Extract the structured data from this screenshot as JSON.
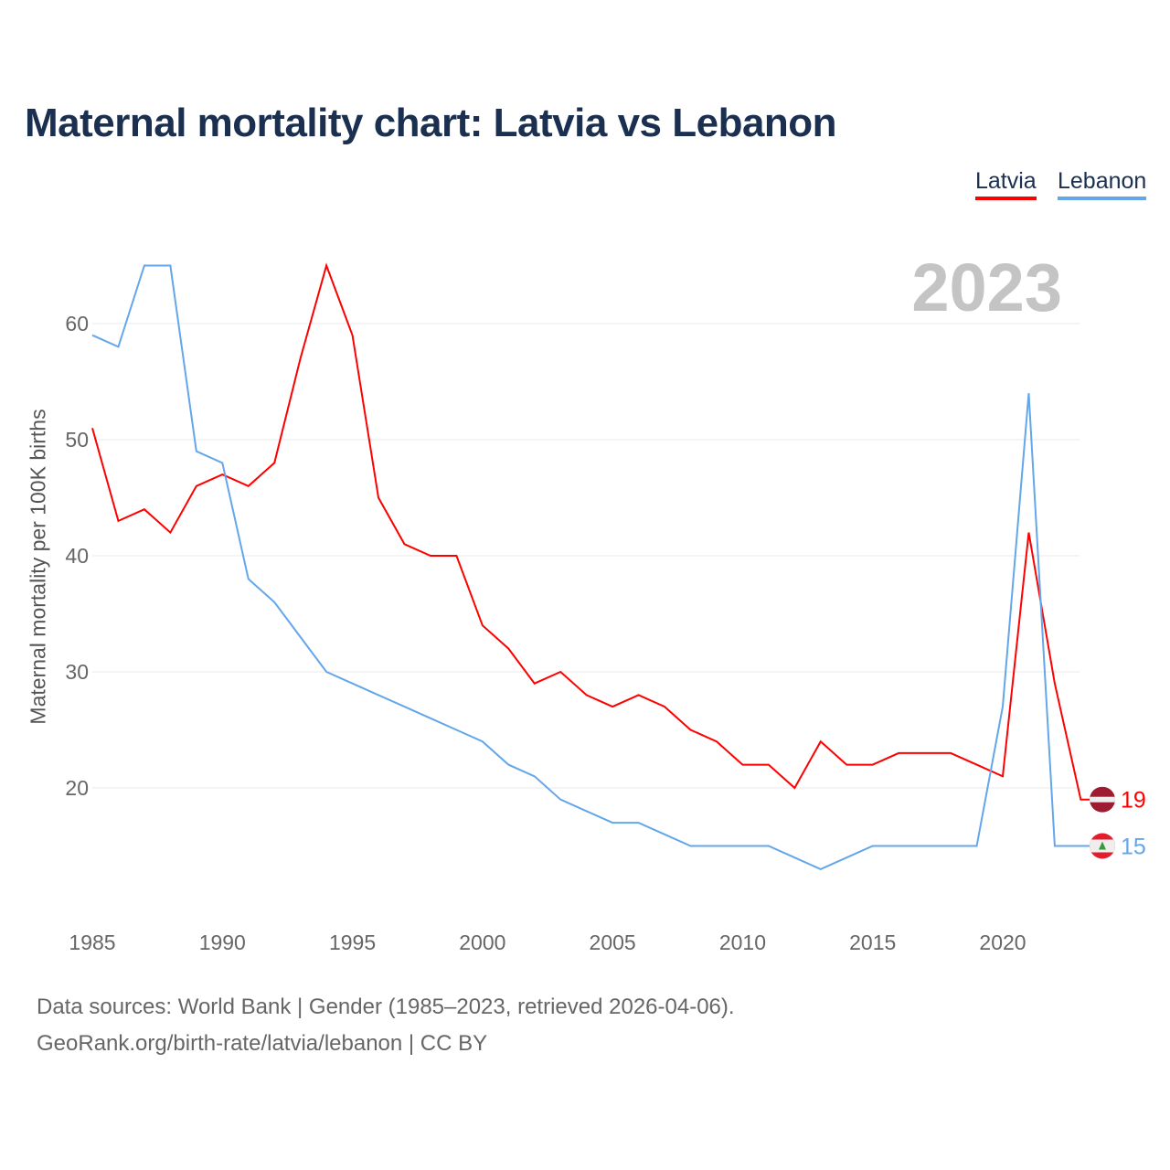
{
  "chart_data": {
    "type": "line",
    "title": "Maternal mortality chart: Latvia vs Lebanon",
    "ylabel": "Maternal mortality per 100K births",
    "xlabel": "",
    "year_label": "2023",
    "ylim": [
      10,
      66
    ],
    "xlim": [
      1985,
      2023
    ],
    "yticks": [
      20,
      30,
      40,
      50,
      60
    ],
    "xticks": [
      1985,
      1990,
      1995,
      2000,
      2005,
      2010,
      2015,
      2020
    ],
    "grid": true,
    "legend_position": "top-right",
    "x": [
      1985,
      1986,
      1987,
      1988,
      1989,
      1990,
      1991,
      1992,
      1993,
      1994,
      1995,
      1996,
      1997,
      1998,
      1999,
      2000,
      2001,
      2002,
      2003,
      2004,
      2005,
      2006,
      2007,
      2008,
      2009,
      2010,
      2011,
      2012,
      2013,
      2014,
      2015,
      2016,
      2017,
      2018,
      2019,
      2020,
      2021,
      2022,
      2023
    ],
    "series": [
      {
        "name": "Latvia",
        "color": "#ff0000",
        "end_label": "19",
        "values": [
          51,
          43,
          44,
          42,
          46,
          47,
          46,
          48,
          57,
          65,
          59,
          45,
          41,
          40,
          40,
          34,
          32,
          29,
          30,
          28,
          27,
          28,
          27,
          25,
          24,
          22,
          22,
          20,
          24,
          22,
          22,
          23,
          23,
          23,
          22,
          21,
          42,
          29,
          19
        ]
      },
      {
        "name": "Lebanon",
        "color": "#63a6ea",
        "end_label": "15",
        "values": [
          59,
          58,
          65,
          65,
          49,
          48,
          38,
          36,
          33,
          30,
          29,
          28,
          27,
          26,
          25,
          24,
          22,
          21,
          19,
          18,
          17,
          17,
          16,
          15,
          15,
          15,
          15,
          14,
          13,
          14,
          15,
          15,
          15,
          15,
          15,
          27,
          54,
          15,
          15
        ]
      }
    ]
  },
  "footer": {
    "line1": "Data sources: World Bank | Gender (1985–2023, retrieved 2026-04-06).",
    "line2": "GeoRank.org/birth-rate/latvia/lebanon | CC BY"
  }
}
